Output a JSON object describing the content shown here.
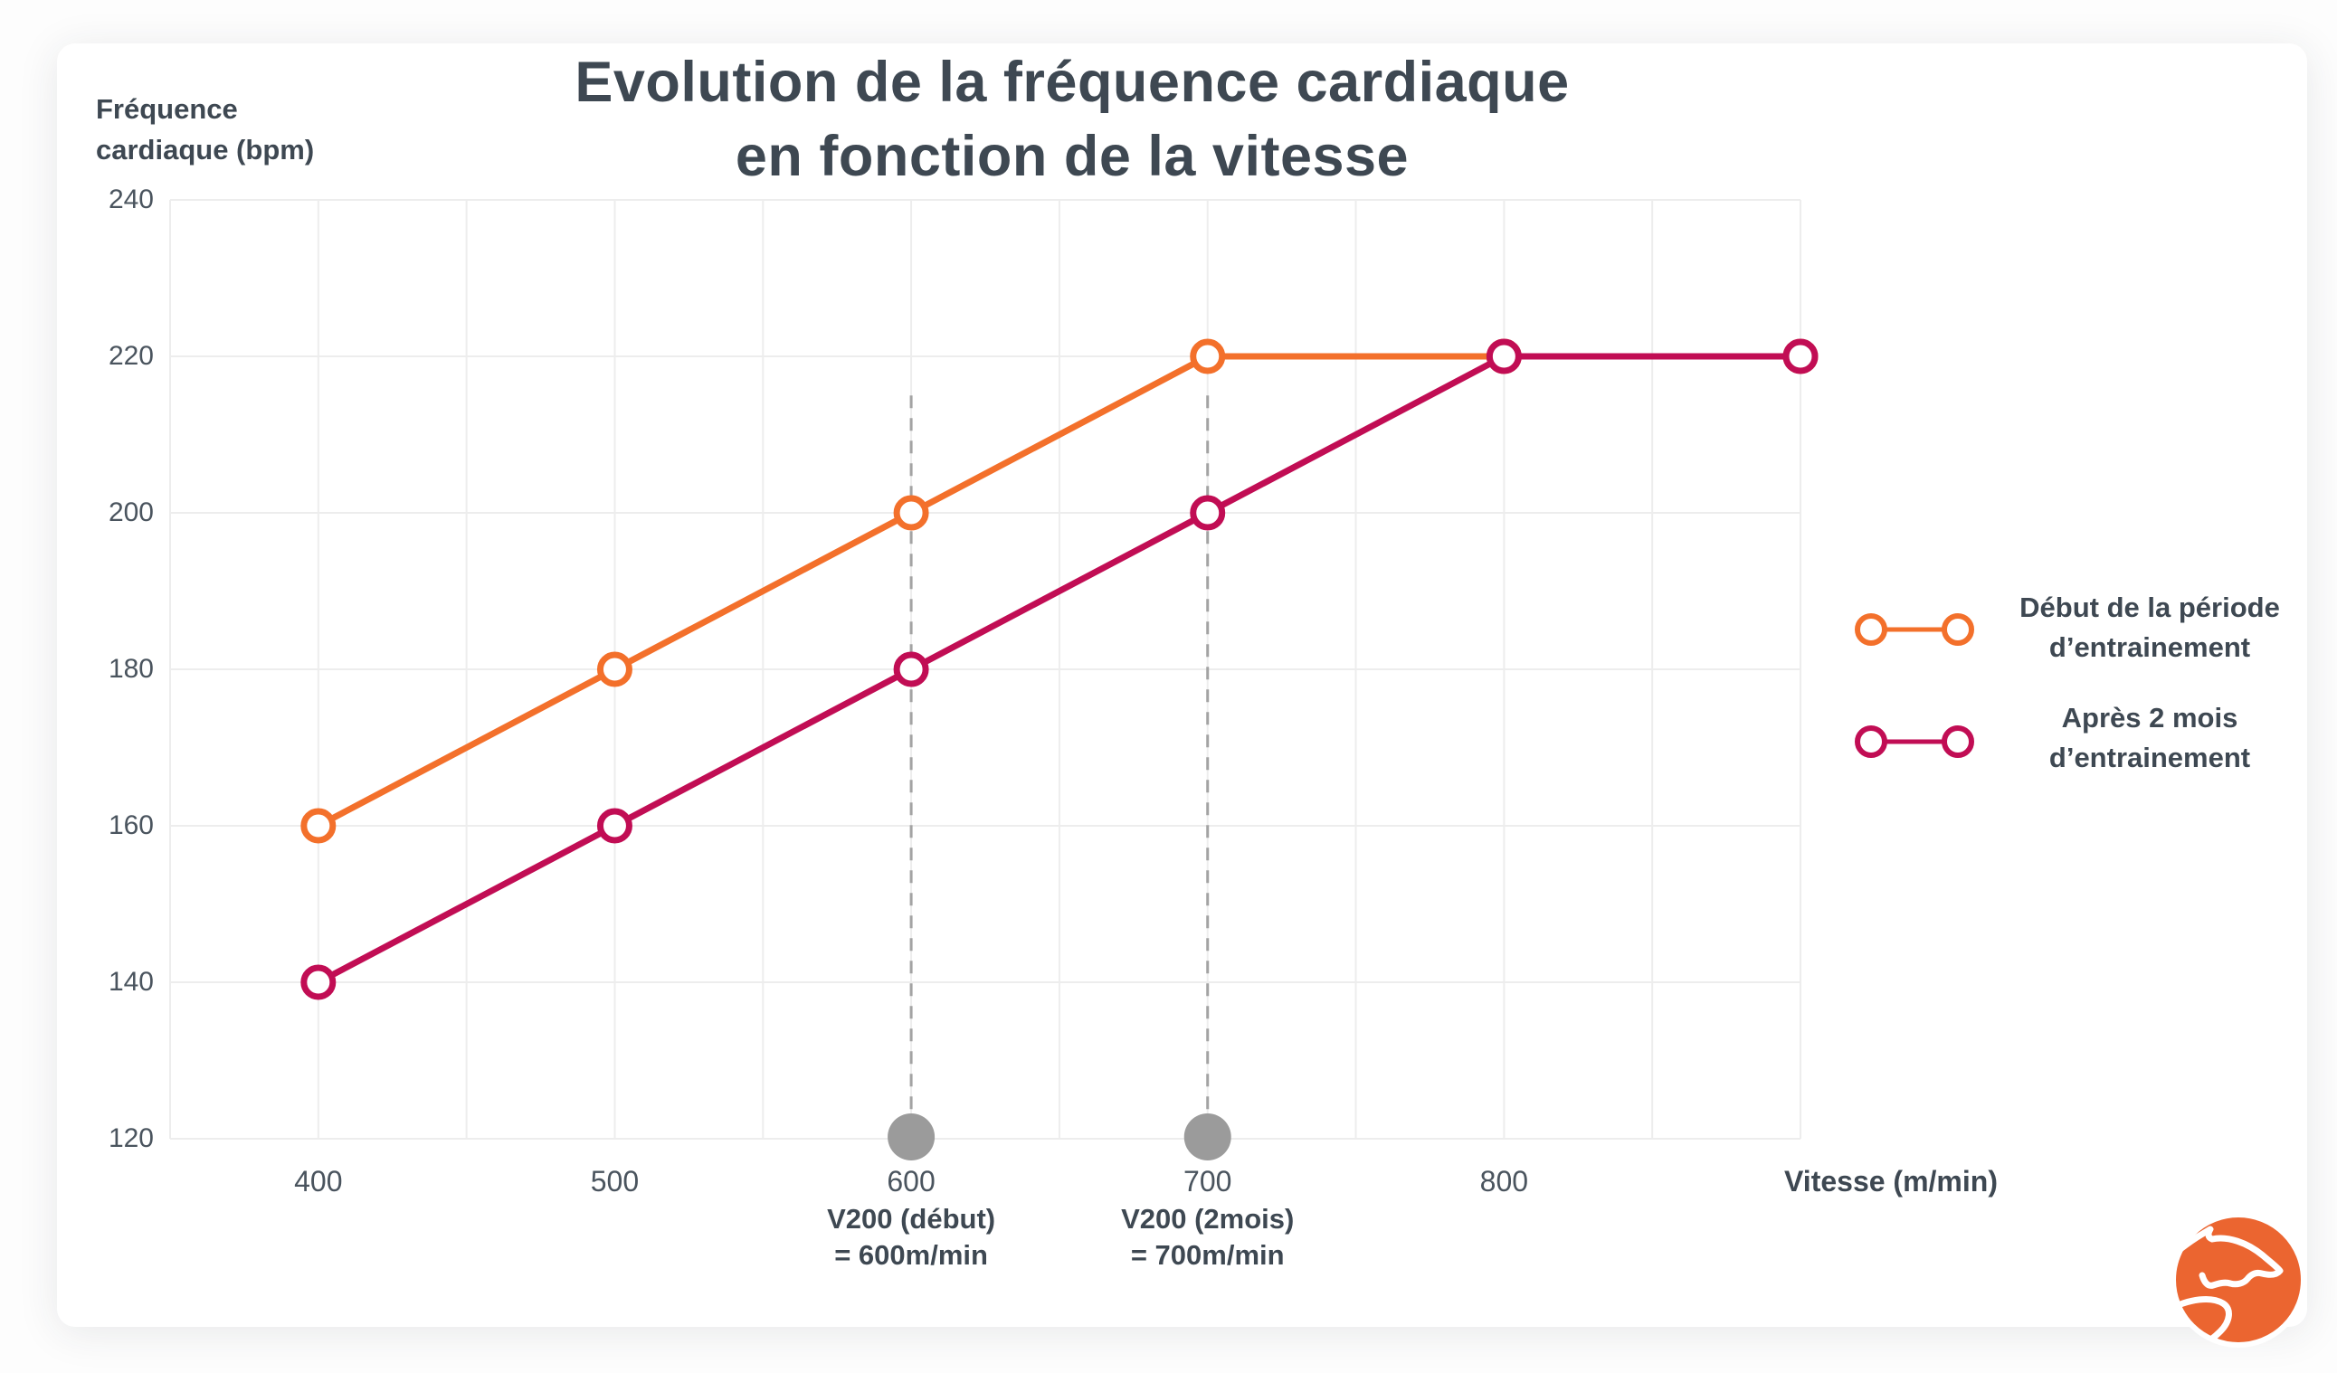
{
  "title": {
    "line1": "Evolution de la fréquence cardiaque",
    "line2": "en fonction de la vitesse"
  },
  "y_axis": {
    "title_line1": "Fréquence",
    "title_line2": "cardiaque (bpm)"
  },
  "x_axis": {
    "label": "Vitesse (m/min)"
  },
  "legend": [
    {
      "label_line1": "Début de la période",
      "label_line2": "d’entrainement",
      "color": "#F3702B"
    },
    {
      "label_line1": "Après 2 mois",
      "label_line2": "d’entrainement",
      "color": "#C10D54"
    }
  ],
  "chart_data": {
    "type": "line",
    "x": [
      400,
      500,
      600,
      700,
      800,
      900
    ],
    "series": [
      {
        "name": "Début de la période d’entrainement",
        "color": "#F3702B",
        "values": [
          160,
          180,
          200,
          220,
          220,
          220
        ]
      },
      {
        "name": "Après 2 mois d’entrainement",
        "color": "#C10D54",
        "values": [
          140,
          160,
          180,
          200,
          220,
          220
        ]
      }
    ],
    "title": "Evolution de la fréquence cardiaque en fonction de la vitesse",
    "xlabel": "Vitesse (m/min)",
    "ylabel": "Fréquence cardiaque (bpm)",
    "xlim": [
      350,
      900
    ],
    "ylim": [
      120,
      240
    ],
    "x_ticks": [
      400,
      500,
      600,
      700,
      800
    ],
    "y_ticks": [
      240,
      220,
      200,
      180,
      160,
      140,
      120
    ],
    "x_gridline_step": 50,
    "y_gridline_step": 20,
    "grid": true,
    "legend_position": "right",
    "annotations": [
      {
        "x": 600,
        "line1": "V200 (début)",
        "line2": "= 600m/min",
        "guide_top_bpm": 215
      },
      {
        "x": 700,
        "line1": "V200 (2mois)",
        "line2": "= 700m/min",
        "guide_top_bpm": 215
      }
    ],
    "colors": {
      "grid": "#EDEDED",
      "dashed_guide": "#A3A3A3",
      "axis_dot": "#9B9B9B",
      "title_text": "#3E4852",
      "tick_text": "#4A545E"
    }
  },
  "logo": {
    "name": "horse-logo",
    "background": "#EB6530",
    "ring": "#FFFFFF"
  }
}
